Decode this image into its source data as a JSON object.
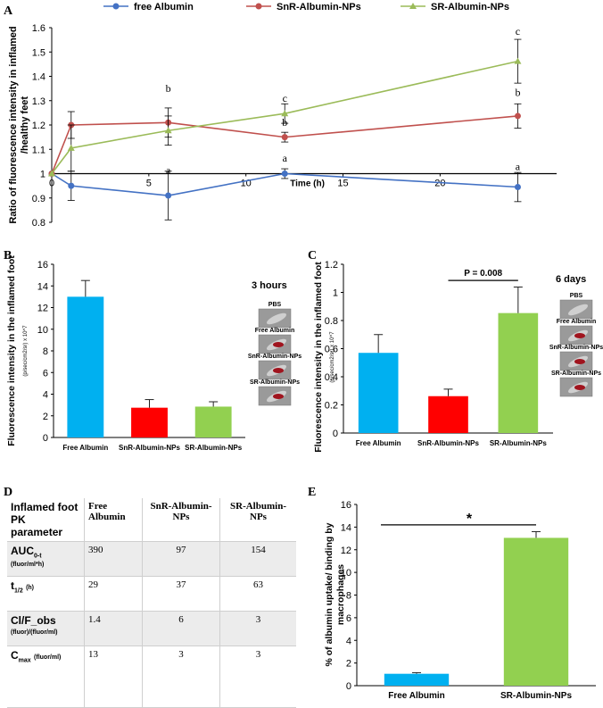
{
  "panels": {
    "A": "A",
    "B": "B",
    "C": "C",
    "D": "D",
    "E": "E"
  },
  "colors": {
    "free": "#4472c4",
    "snr": "#c0504d",
    "sr": "#9bbb59",
    "barBlue": "#00b0f0",
    "barRed": "#ff0000",
    "barGreen": "#92d050"
  },
  "chart_data": [
    {
      "panel": "A",
      "type": "line",
      "ylabel": "Ratio of fluorescence intensity in inflamed /healthy feet",
      "xlabel": "Time (h)",
      "xlim": [
        0,
        26
      ],
      "ylim": [
        0.8,
        1.6
      ],
      "xticks": [
        "0",
        "5",
        "10",
        "15",
        "20"
      ],
      "yticks": [
        "0.8",
        "0.9",
        "1",
        "1.1",
        "1.2",
        "1.3",
        "1.4",
        "1.5",
        "1.6"
      ],
      "series": [
        {
          "name": "free Albumin",
          "x": [
            0,
            1,
            6,
            12,
            24
          ],
          "y": [
            1,
            0.95,
            0.91,
            1.0,
            0.945
          ],
          "err": [
            0,
            0.06,
            0.1,
            0.02,
            0.06
          ]
        },
        {
          "name": "SnR-Albumin-NPs",
          "x": [
            0,
            1,
            6,
            12,
            24
          ],
          "y": [
            1,
            1.2,
            1.21,
            1.15,
            1.237
          ],
          "err": [
            0,
            0.055,
            0.06,
            0.02,
            0.05
          ]
        },
        {
          "name": "SR-Albumin-NPs",
          "x": [
            0,
            1,
            6,
            12,
            24
          ],
          "y": [
            1,
            1.105,
            1.177,
            1.247,
            1.462
          ],
          "err": [
            0,
            0.095,
            0.06,
            0.04,
            0.09
          ]
        }
      ],
      "annotations": [
        {
          "x": 6,
          "y": 1.335,
          "text": "b"
        },
        {
          "x": 6,
          "y": 1.0,
          "text": "a"
        },
        {
          "x": 12,
          "y": 1.295,
          "text": "c"
        },
        {
          "x": 12,
          "y": 1.197,
          "text": "b"
        },
        {
          "x": 12,
          "y": 1.05,
          "text": "a"
        },
        {
          "x": 24,
          "y": 1.57,
          "text": "c"
        },
        {
          "x": 24,
          "y": 1.32,
          "text": "b"
        },
        {
          "x": 24,
          "y": 1.015,
          "text": "a"
        }
      ]
    },
    {
      "panel": "B",
      "type": "bar",
      "ylabel": "Fluorescence intensity in the inflamed foot",
      "yunit": "(p/sec/cm2/sr) x 10^7",
      "ylim": [
        0,
        16
      ],
      "yticks": [
        "0",
        "2",
        "4",
        "6",
        "8",
        "10",
        "12",
        "14",
        "16"
      ],
      "categories": [
        "Free Albumin",
        "SnR-Albumin-NPs",
        "SR-Albumin-NPs"
      ],
      "values": [
        13,
        2.75,
        2.85
      ],
      "err": [
        1.5,
        0.75,
        0.45
      ],
      "title": "3 hours",
      "legend_labels": [
        "PBS",
        "Free Albumin",
        "SnR-Albumin-NPs",
        "SR-Albumin-NPs"
      ]
    },
    {
      "panel": "C",
      "type": "bar",
      "ylabel": "Fluorescence intensity in the inflamed foot",
      "yunit": "(p/sec/cm2/sr) x 10^7",
      "ylim": [
        0,
        1.2
      ],
      "yticks": [
        "0",
        "0.2",
        "0.4",
        "0.6",
        "0.8",
        "1",
        "1.2"
      ],
      "categories": [
        "Free Albumin",
        "SnR-Albumin-NPs",
        "SR-Albumin-NPs"
      ],
      "values": [
        0.57,
        0.262,
        0.853
      ],
      "err": [
        0.13,
        0.05,
        0.185
      ],
      "title": "6 days",
      "pvalue": "P = 0.008",
      "legend_labels": [
        "PBS",
        "Free Albumin",
        "SnR-Albumin-NPs",
        "SR-Albumin-NPs"
      ]
    },
    {
      "panel": "E",
      "type": "bar",
      "ylabel": "% of albumin uptake/ binding by macrophages",
      "ylim": [
        0,
        16
      ],
      "yticks": [
        "0",
        "2",
        "4",
        "6",
        "8",
        "10",
        "12",
        "14",
        "16"
      ],
      "categories": [
        "Free Albumin",
        "SR-Albumin-NPs"
      ],
      "values": [
        1.05,
        13.05
      ],
      "err": [
        0.1,
        0.55
      ],
      "sig": "*"
    }
  ],
  "table": {
    "header": [
      "Inflamed foot PK parameter",
      "Free Albumin",
      "SnR-Albumin-NPs",
      "SR-Albumin-NPs"
    ],
    "rows": [
      {
        "label": "AUC",
        "label_sub": "0-t",
        "unit": "(fluor/ml*h)",
        "values": [
          "390",
          "97",
          "154"
        ]
      },
      {
        "label": "t",
        "label_sub": "1/2",
        "unit": "(h)",
        "values": [
          "29",
          "37",
          "63"
        ]
      },
      {
        "label": "Cl/F_obs",
        "label_sub": "",
        "unit": "(fluor)/(fluor/ml)",
        "values": [
          "1.4",
          "6",
          "3"
        ]
      },
      {
        "label": "C",
        "label_sub": "max",
        "unit": "(fluor/ml)",
        "values": [
          "13",
          "3",
          "3"
        ]
      }
    ]
  }
}
